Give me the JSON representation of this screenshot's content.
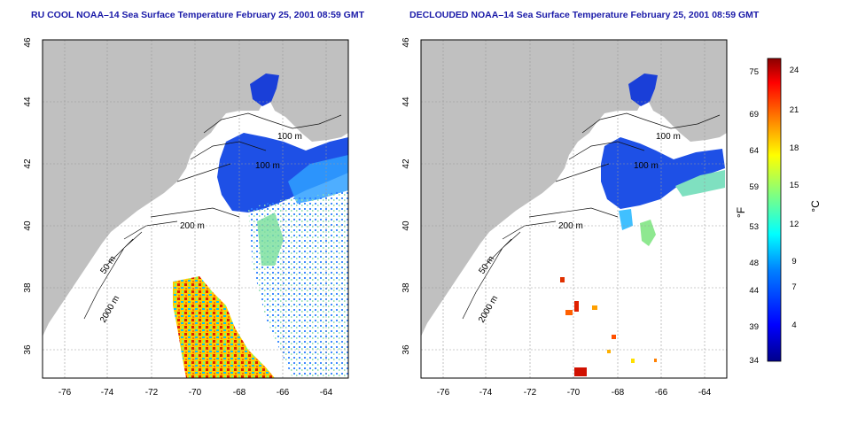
{
  "panels": [
    {
      "title": "RU COOL NOAA–14 Sea Surface Temperature February 25, 2001 08:59 GMT",
      "contour_labels": [
        "100 m",
        "100 m",
        "200 m",
        "50 m",
        "2000 m"
      ]
    },
    {
      "title": "DECLOUDED NOAA–14 Sea Surface Temperature February 25, 2001 08:59 GMT",
      "contour_labels": [
        "100 m",
        "100 m",
        "200 m",
        "50 m",
        "2000 m"
      ]
    }
  ],
  "axes": {
    "x_ticks": [
      "-76",
      "-74",
      "-72",
      "-70",
      "-68",
      "-66",
      "-64"
    ],
    "y_ticks": [
      "36",
      "38",
      "40",
      "42",
      "44",
      "46"
    ]
  },
  "colorbar": {
    "f_label": "°F",
    "c_label": "°C",
    "f_ticks": [
      "75",
      "69",
      "64",
      "59",
      "53",
      "48",
      "44",
      "39",
      "34"
    ],
    "c_ticks": [
      "24",
      "21",
      "18",
      "15",
      "12",
      "9",
      "7",
      "4"
    ],
    "colors": [
      "#00008b",
      "#0000ff",
      "#0080ff",
      "#00ffff",
      "#80ff80",
      "#ffff00",
      "#ff8000",
      "#ff0000",
      "#8b0000"
    ]
  },
  "colors": {
    "land": "#c0c0c0",
    "title": "#1a1aa8"
  }
}
